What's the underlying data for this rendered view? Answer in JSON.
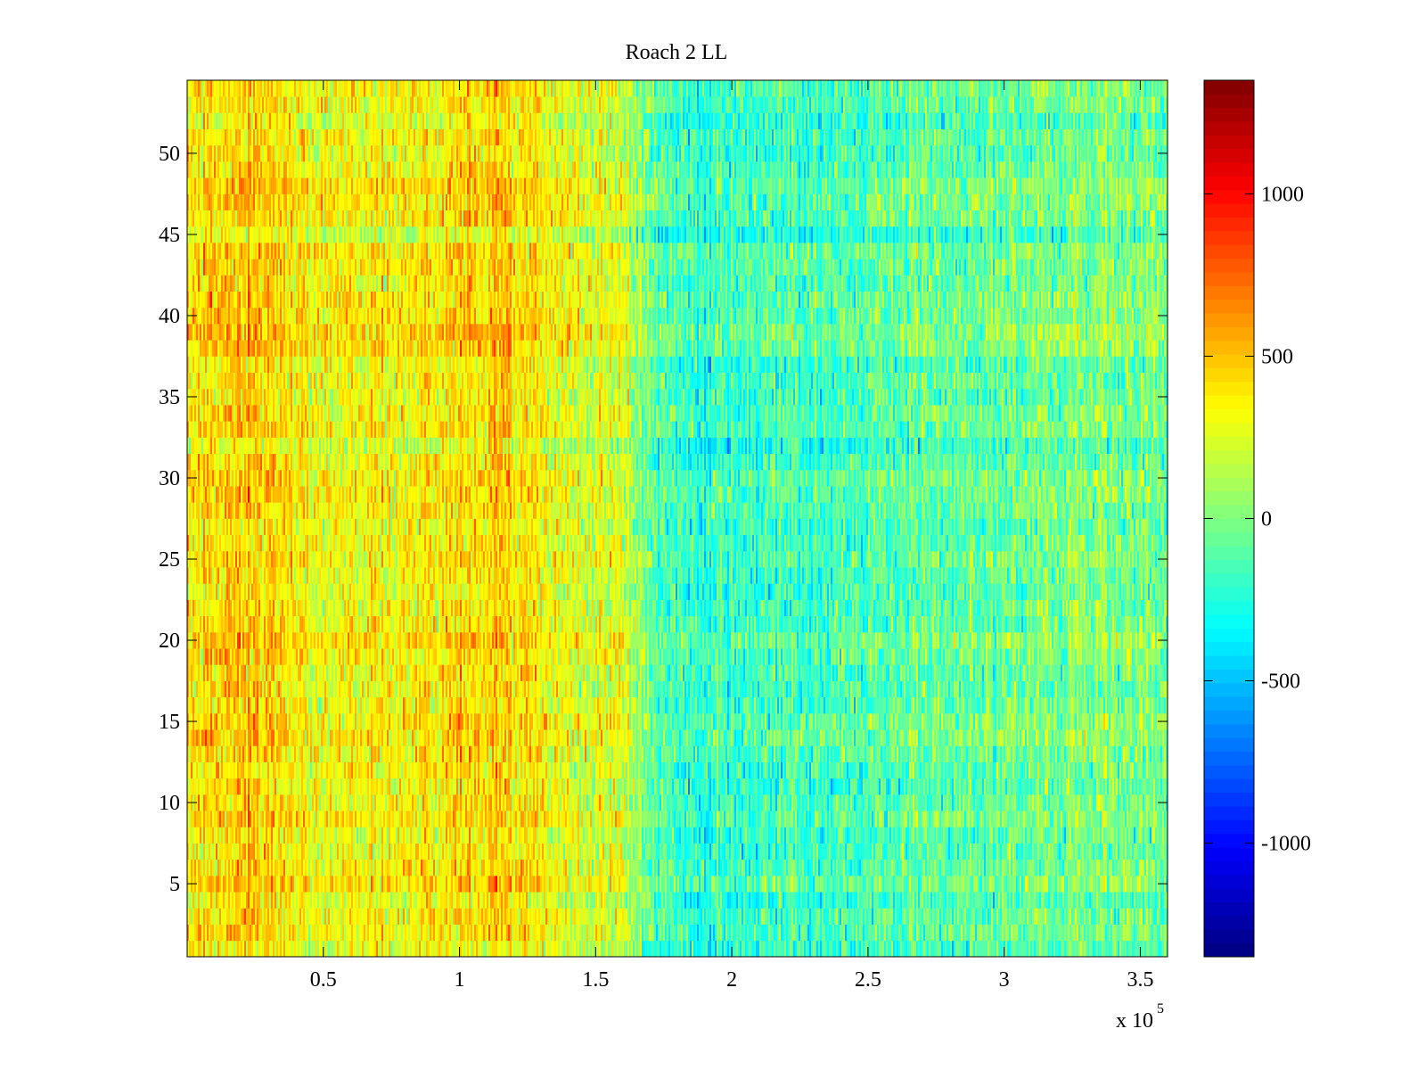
{
  "chart_data": {
    "type": "heatmap",
    "title": "Roach 2 LL",
    "xlabel": "",
    "ylabel": "",
    "x_range": [
      0,
      360000
    ],
    "y_range": [
      0.5,
      54.5
    ],
    "x_ticks": [
      50000,
      100000,
      150000,
      200000,
      250000,
      300000,
      350000
    ],
    "x_tick_labels": [
      "0.5",
      "1",
      "1.5",
      "2",
      "2.5",
      "3",
      "3.5"
    ],
    "x_exponent_label": "x 10",
    "x_exponent": "5",
    "y_ticks": [
      5,
      10,
      15,
      20,
      25,
      30,
      35,
      40,
      45,
      50
    ],
    "y_tick_labels": [
      "5",
      "10",
      "15",
      "20",
      "25",
      "30",
      "35",
      "40",
      "45",
      "50"
    ],
    "n_rows": 54,
    "colormap": "jet",
    "color_range": [
      -1350,
      1350
    ],
    "colorbar_ticks": [
      1000,
      500,
      0,
      -500,
      -1000
    ],
    "colorbar_tick_labels": [
      "1000",
      "500",
      "0",
      "-500",
      "-1000"
    ],
    "column_profile": {
      "x": [
        0,
        20000,
        50000,
        80000,
        100000,
        115000,
        130000,
        160000,
        172000,
        190000,
        210000,
        250000,
        300000,
        330000,
        360000
      ],
      "mean": [
        380,
        480,
        330,
        350,
        420,
        480,
        320,
        230,
        -80,
        -220,
        -180,
        -100,
        -60,
        30,
        -40
      ]
    },
    "noise_amplitude": 200,
    "grid": false,
    "colorbar_position": "right"
  }
}
